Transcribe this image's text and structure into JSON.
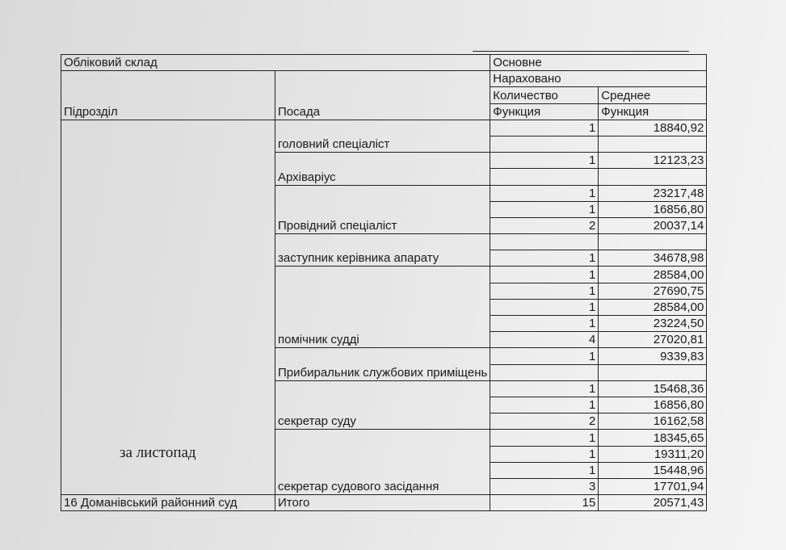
{
  "header": {
    "accounting_staff": "Обліковий склад",
    "main": "Основне",
    "accrued": "Нараховано",
    "department": "Підрозділ",
    "position": "Посада",
    "count": "Количество",
    "average": "Среднее",
    "function_1": "Функция",
    "function_2": "Функция"
  },
  "department": {
    "name": "16 Доманівський районний суд",
    "period": "за листопад"
  },
  "groups": [
    {
      "position": "головний спеціаліст",
      "rows": [
        [
          "1",
          "18840,92"
        ],
        [
          "",
          ""
        ]
      ]
    },
    {
      "position": "Архіваріус",
      "rows": [
        [
          "1",
          "12123,23"
        ],
        [
          "",
          ""
        ]
      ]
    },
    {
      "position": "Провідний спеціаліст",
      "rows": [
        [
          "1",
          "23217,48"
        ],
        [
          "1",
          "16856,80"
        ],
        [
          "2",
          "20037,14"
        ]
      ]
    },
    {
      "position": "заступник керівника апарату",
      "rows": [
        [
          "",
          ""
        ],
        [
          "1",
          "34678,98"
        ]
      ]
    },
    {
      "position": "помічник судді",
      "rows": [
        [
          "1",
          "28584,00"
        ],
        [
          "1",
          "27690,75"
        ],
        [
          "1",
          "28584,00"
        ],
        [
          "1",
          "23224,50"
        ],
        [
          "4",
          "27020,81"
        ]
      ]
    },
    {
      "position": "Прибиральник службових приміщень",
      "rows": [
        [
          "1",
          "9339,83"
        ],
        [
          "",
          ""
        ]
      ]
    },
    {
      "position": "секретар суду",
      "rows": [
        [
          "1",
          "15468,36"
        ],
        [
          "1",
          "16856,80"
        ],
        [
          "2",
          "16162,58"
        ]
      ]
    },
    {
      "position": "секретар судового засідання",
      "rows": [
        [
          "1",
          "18345,65"
        ],
        [
          "1",
          "19311,20"
        ],
        [
          "1",
          "15448,96"
        ],
        [
          "3",
          "17701,94"
        ]
      ]
    }
  ],
  "total": {
    "label": "Итого",
    "count": "15",
    "average": "20571,43"
  }
}
